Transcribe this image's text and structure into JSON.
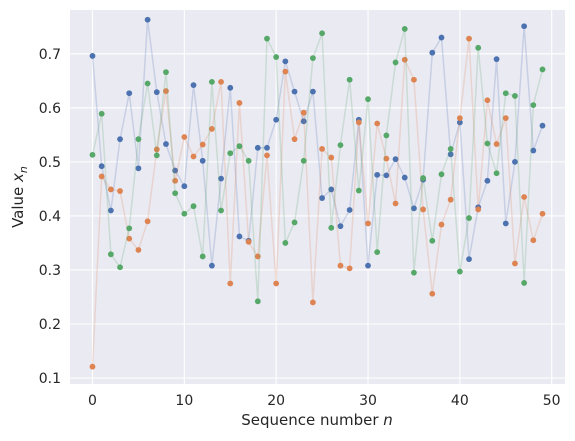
{
  "chart_data": {
    "type": "scatter",
    "xlabel": "Sequence number n",
    "ylabel": "Value x_n",
    "xlim": [
      -2.45,
      51.45
    ],
    "ylim": [
      0.089,
      0.781
    ],
    "xticks": [
      0,
      10,
      20,
      30,
      40,
      50
    ],
    "yticks": [
      0.1,
      0.2,
      0.3,
      0.4,
      0.5,
      0.6,
      0.7
    ],
    "grid": true,
    "background": "#eaeaf2",
    "x": [
      0,
      1,
      2,
      3,
      4,
      5,
      6,
      7,
      8,
      9,
      10,
      11,
      12,
      13,
      14,
      15,
      16,
      17,
      18,
      19,
      20,
      21,
      22,
      23,
      24,
      25,
      26,
      27,
      28,
      29,
      30,
      31,
      32,
      33,
      34,
      35,
      36,
      37,
      38,
      39,
      40,
      41,
      42,
      43,
      44,
      45,
      46,
      47,
      48,
      49
    ],
    "series": [
      {
        "color": "#4c72b0",
        "values": [
          0.696,
          0.492,
          0.41,
          0.542,
          0.627,
          0.488,
          0.763,
          0.629,
          0.533,
          0.484,
          0.455,
          0.642,
          0.502,
          0.308,
          0.469,
          0.637,
          0.362,
          0.354,
          0.526,
          0.526,
          0.578,
          0.686,
          0.63,
          0.575,
          0.63,
          0.433,
          0.449,
          0.381,
          0.411,
          0.578,
          0.308,
          0.476,
          0.475,
          0.505,
          0.471,
          0.414,
          0.467,
          0.702,
          0.73,
          0.514,
          0.573,
          0.32,
          0.416,
          0.465,
          0.69,
          0.386,
          0.5,
          0.751,
          0.521,
          0.567
        ]
      },
      {
        "color": "#dd8452",
        "values": [
          0.121,
          0.473,
          0.449,
          0.446,
          0.358,
          0.337,
          0.39,
          0.523,
          0.631,
          0.465,
          0.546,
          0.51,
          0.532,
          0.561,
          0.648,
          0.275,
          0.609,
          0.352,
          0.325,
          0.512,
          0.275,
          0.667,
          0.542,
          0.591,
          0.24,
          0.524,
          0.508,
          0.308,
          0.303,
          0.573,
          0.386,
          0.571,
          0.506,
          0.423,
          0.689,
          0.652,
          0.412,
          0.256,
          0.384,
          0.43,
          0.581,
          0.728,
          0.412,
          0.614,
          0.533,
          0.581,
          0.312,
          0.435,
          0.355,
          0.404
        ]
      },
      {
        "color": "#55a868",
        "values": [
          0.513,
          0.589,
          0.329,
          0.305,
          0.377,
          0.542,
          0.645,
          0.512,
          0.666,
          0.442,
          0.404,
          0.418,
          0.325,
          0.648,
          0.41,
          0.516,
          0.529,
          0.502,
          0.242,
          0.728,
          0.694,
          0.35,
          0.388,
          0.502,
          0.692,
          0.738,
          0.378,
          0.531,
          0.652,
          0.447,
          0.616,
          0.333,
          0.549,
          0.684,
          0.746,
          0.295,
          0.47,
          0.354,
          0.477,
          0.524,
          0.297,
          0.396,
          0.711,
          0.534,
          0.479,
          0.627,
          0.622,
          0.276,
          0.605,
          0.671
        ]
      }
    ]
  }
}
